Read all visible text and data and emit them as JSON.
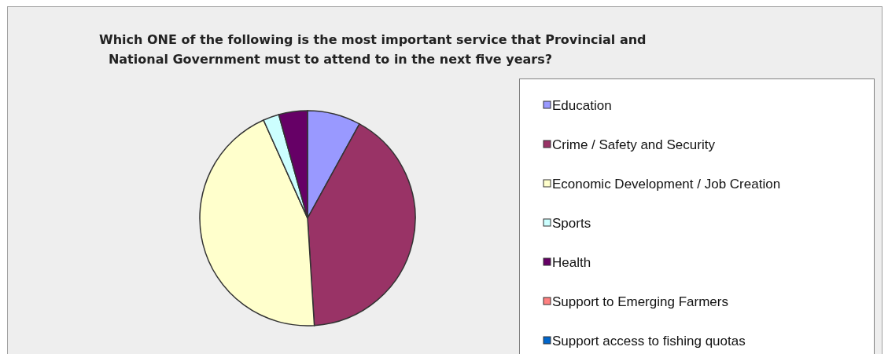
{
  "chart_data": {
    "type": "pie",
    "title": "Which ONE of the following is the most important service that Provincial and\nNational Government must to attend to in the next five years?",
    "categories": [
      "Education",
      "Crime / Safety and Security",
      "Economic Development / Job Creation",
      "Sports",
      "Health",
      "Support to Emerging Farmers",
      "Support access to fishing quotas"
    ],
    "values": [
      8,
      41,
      44.3,
      2.4,
      4.3,
      0,
      0
    ],
    "colors": [
      "#9999ff",
      "#993366",
      "#ffffcc",
      "#ccffff",
      "#660066",
      "#ff8080",
      "#0066cc"
    ],
    "legend": "right"
  }
}
